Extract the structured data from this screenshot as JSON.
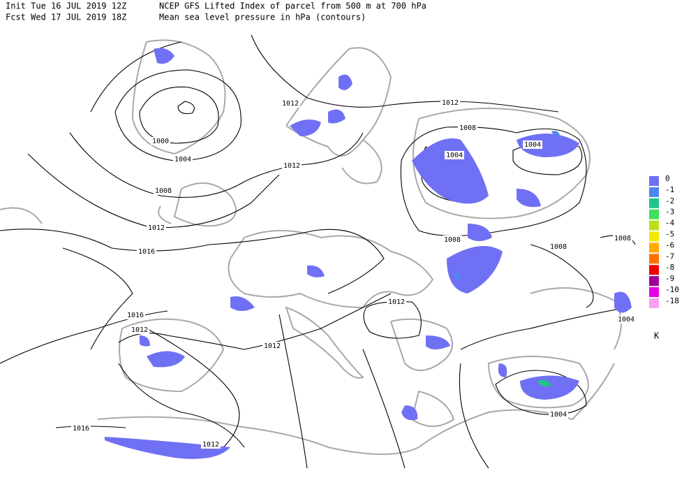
{
  "header": {
    "init": "Init  Tue 16 JUL 2019 12Z",
    "title": "NCEP GFS Lifted Index of parcel from 500 m at 700 hPa",
    "forecast": "Fcst Wed 17 JUL 2019 18Z",
    "subtitle": "Mean sea level pressure in hPa (contours)"
  },
  "legend": {
    "unit": "K",
    "entries": [
      {
        "label": "0",
        "color": "#7070f4"
      },
      {
        "label": "-1",
        "color": "#4f86f0"
      },
      {
        "label": "-2",
        "color": "#20c488"
      },
      {
        "label": "-3",
        "color": "#3fe05a"
      },
      {
        "label": "-4",
        "color": "#b8e21c"
      },
      {
        "label": "-5",
        "color": "#f2ea00"
      },
      {
        "label": "-6",
        "color": "#ffaa00"
      },
      {
        "label": "-7",
        "color": "#ff7000"
      },
      {
        "label": "-8",
        "color": "#ee0000"
      },
      {
        "label": "-9",
        "color": "#a00098"
      },
      {
        "label": "-10",
        "color": "#e400e4"
      },
      {
        "label": "-18",
        "color": "#f8a0f0"
      }
    ]
  },
  "contour_labels": [
    "1012",
    "1012",
    "1008",
    "1004",
    "1004",
    "1000",
    "1004",
    "1012",
    "1008",
    "1012",
    "1016",
    "1008",
    "1008",
    "1008",
    "1012",
    "1016",
    "1012",
    "1012",
    "1004",
    "1004",
    "1016",
    "1012"
  ]
}
